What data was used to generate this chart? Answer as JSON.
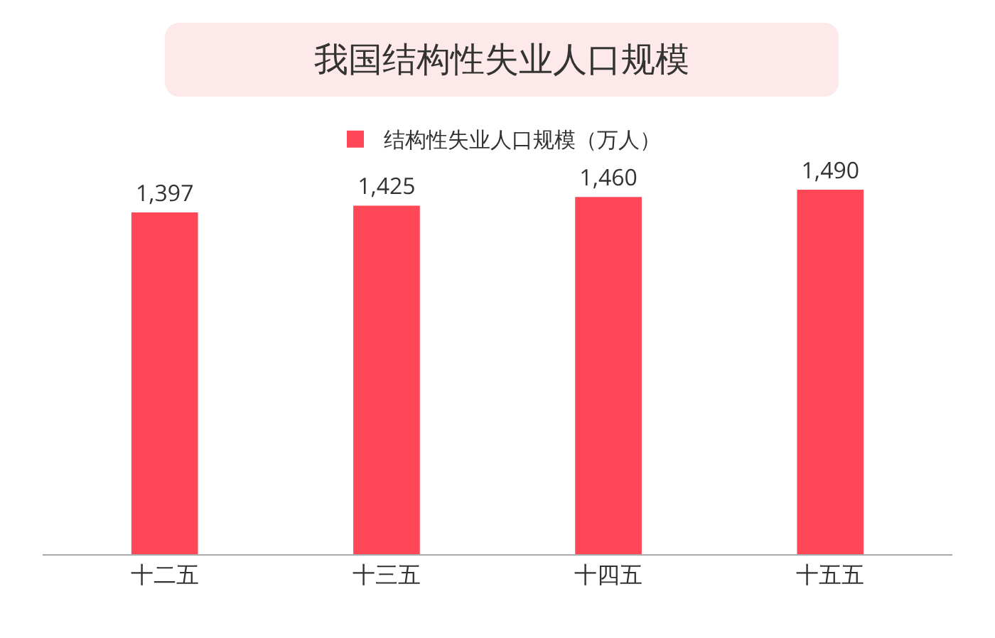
{
  "chart_data": {
    "type": "bar",
    "title": "我国结构性失业人口规模",
    "categories": [
      "十二五",
      "十三五",
      "十四五",
      "十五五"
    ],
    "series": [
      {
        "name": "结构性失业人口规模（万人）",
        "color": "#ff4757",
        "values": [
          1397,
          1425,
          1460,
          1490
        ],
        "value_labels": [
          "1,397",
          "1,425",
          "1,460",
          "1,490"
        ]
      }
    ],
    "legend": "top",
    "tick_labels": "x"
  }
}
